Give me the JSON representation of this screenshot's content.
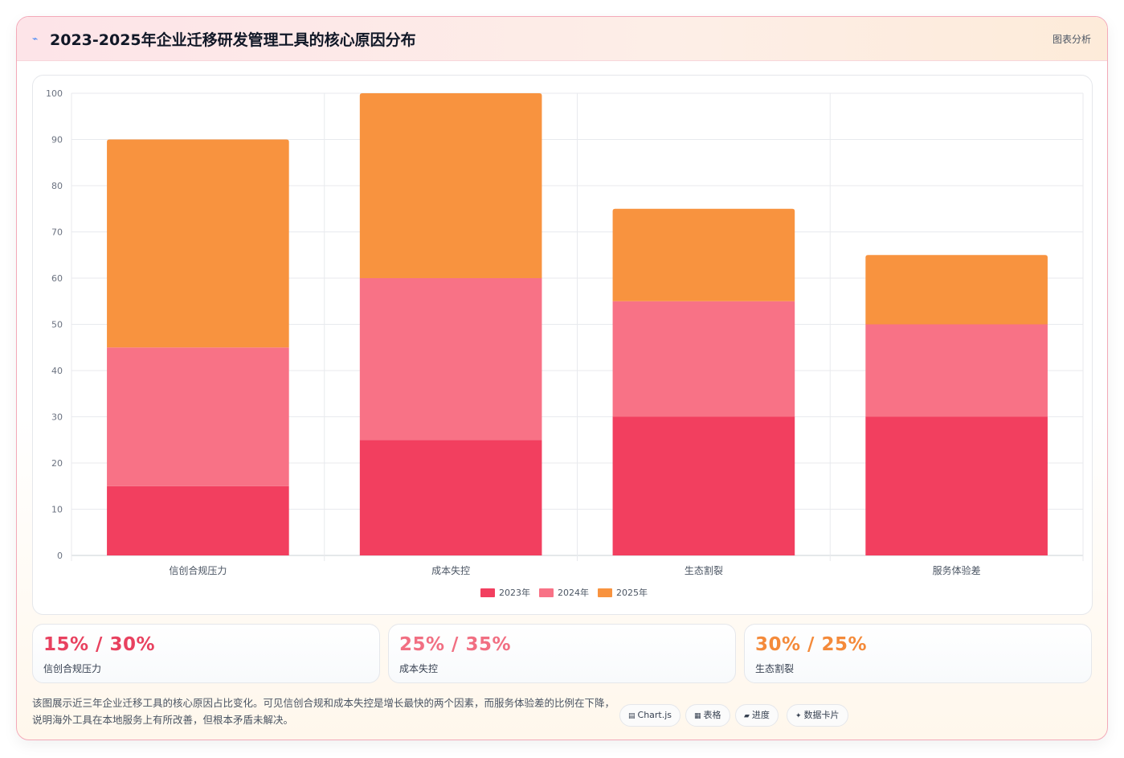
{
  "header": {
    "icon": "chart-line-icon",
    "title": "2023-2025年企业迁移研发管理工具的核心原因分布",
    "tag": "图表分析"
  },
  "chart_data": {
    "type": "bar",
    "stacked": true,
    "categories": [
      "信创合规压力",
      "成本失控",
      "生态割裂",
      "服务体验差"
    ],
    "series": [
      {
        "name": "2023年",
        "values": [
          15,
          25,
          30,
          30
        ],
        "color": "#f23f5f"
      },
      {
        "name": "2024年",
        "values": [
          30,
          35,
          25,
          20
        ],
        "color": "#f87286"
      },
      {
        "name": "2025年",
        "values": [
          45,
          40,
          20,
          15
        ],
        "color": "#f8933f"
      }
    ],
    "ylim": [
      0,
      100
    ],
    "yticks": [
      0,
      10,
      20,
      30,
      40,
      50,
      60,
      70,
      80,
      90,
      100
    ],
    "grid": true,
    "legend": "bottom"
  },
  "stats": [
    {
      "value": "15% / 30%",
      "label": "信创合规压力",
      "color": "#e8415f"
    },
    {
      "value": "25% / 35%",
      "label": "成本失控",
      "color": "#f16f82"
    },
    {
      "value": "30% / 25%",
      "label": "生态割裂",
      "color": "#f48a3a"
    }
  ],
  "description": "该图展示近三年企业迁移工具的核心原因占比变化。可见信创合规和成本失控是增长最快的两个因素，而服务体验差的比例在下降，说明海外工具在本地服务上有所改善，但根本矛盾未解决。",
  "badges": [
    {
      "icon": "▤",
      "label": "Chart.js"
    },
    {
      "icon": "▦",
      "label": "表格"
    },
    {
      "icon": "▰",
      "label": "进度"
    },
    {
      "icon": "✦",
      "label": "数据卡片"
    }
  ]
}
